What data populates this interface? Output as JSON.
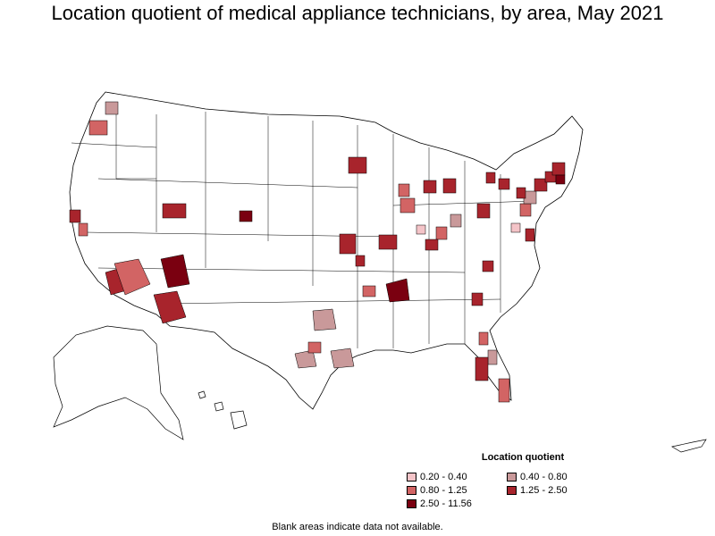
{
  "title": "Location quotient of medical appliance technicians, by area, May 2021",
  "legend": {
    "title": "Location quotient",
    "items": [
      {
        "label": "0.20 - 0.40",
        "color": "#f4c4c8"
      },
      {
        "label": "0.40 - 0.80",
        "color": "#c9999a"
      },
      {
        "label": "0.80 - 1.25",
        "color": "#d26464"
      },
      {
        "label": "1.25 - 2.50",
        "color": "#a8242c"
      },
      {
        "label": "2.50 - 11.56",
        "color": "#7a0010"
      }
    ]
  },
  "footnote": "Blank areas indicate data not available.",
  "colors": {
    "background": "#ffffff",
    "border": "#000000"
  }
}
